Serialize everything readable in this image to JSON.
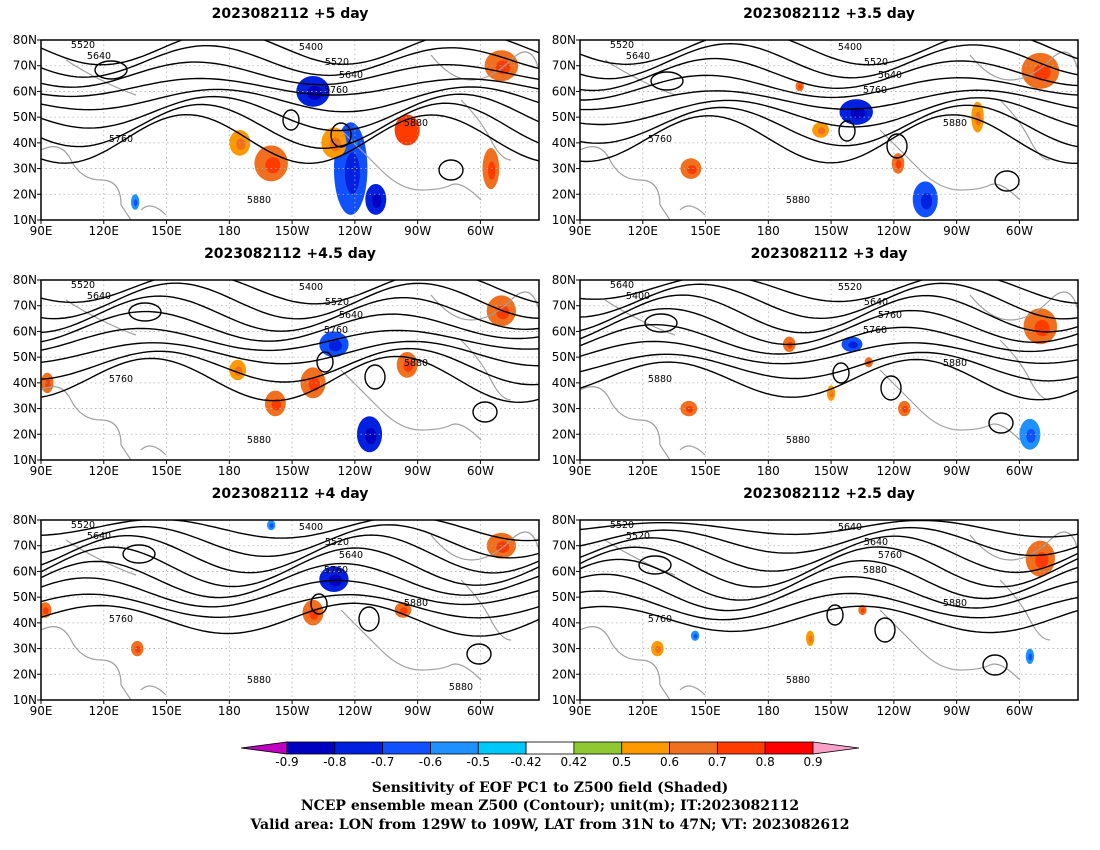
{
  "panels": [
    {
      "title": "2023082112 +5 day",
      "contour_labels": [
        "5520",
        "5640",
        "5400",
        "5520",
        "5640",
        "5760",
        "5760",
        "5880",
        "5880"
      ],
      "shading": [
        {
          "lon": -140,
          "lat": 60,
          "value": -0.8,
          "rx": 8,
          "ry": 6
        },
        {
          "lon": -122,
          "lat": 30,
          "value": -0.7,
          "rx": 8,
          "ry": 18
        },
        {
          "lon": -110,
          "lat": 18,
          "value": -0.8,
          "rx": 5,
          "ry": 6
        },
        {
          "lon": -130,
          "lat": 40,
          "value": 0.5,
          "rx": 6,
          "ry": 6
        },
        {
          "lon": -160,
          "lat": 32,
          "value": 0.6,
          "rx": 8,
          "ry": 7
        },
        {
          "lon": -175,
          "lat": 40,
          "value": 0.5,
          "rx": 5,
          "ry": 5
        },
        {
          "lon": -95,
          "lat": 45,
          "value": 0.7,
          "rx": 6,
          "ry": 6
        },
        {
          "lon": -50,
          "lat": 70,
          "value": 0.6,
          "rx": 8,
          "ry": 6
        },
        {
          "lon": -55,
          "lat": 30,
          "value": 0.6,
          "rx": 4,
          "ry": 8
        },
        {
          "lon": 135,
          "lat": 17,
          "value": -0.6,
          "rx": 2,
          "ry": 3
        }
      ]
    },
    {
      "title": "2023082112 +3.5 day",
      "contour_labels": [
        "5520",
        "5640",
        "5400",
        "5520",
        "5640",
        "5760",
        "5760",
        "5880",
        "5880"
      ],
      "shading": [
        {
          "lon": -138,
          "lat": 52,
          "value": -0.8,
          "rx": 8,
          "ry": 5
        },
        {
          "lon": -105,
          "lat": 18,
          "value": -0.7,
          "rx": 6,
          "ry": 7
        },
        {
          "lon": -155,
          "lat": 45,
          "value": 0.5,
          "rx": 4,
          "ry": 3
        },
        {
          "lon": -118,
          "lat": 32,
          "value": 0.6,
          "rx": 3,
          "ry": 4
        },
        {
          "lon": 143,
          "lat": 30,
          "value": 0.6,
          "rx": 5,
          "ry": 4
        },
        {
          "lon": -50,
          "lat": 68,
          "value": 0.6,
          "rx": 9,
          "ry": 7
        },
        {
          "lon": -80,
          "lat": 50,
          "value": 0.5,
          "rx": 3,
          "ry": 6
        },
        {
          "lon": -165,
          "lat": 62,
          "value": 0.6,
          "rx": 2,
          "ry": 2
        }
      ]
    },
    {
      "title": "2023082112 +4.5 day",
      "contour_labels": [
        "5520",
        "5640",
        "5400",
        "5520",
        "5640",
        "5760",
        "5760",
        "5880",
        "5880"
      ],
      "shading": [
        {
          "lon": -130,
          "lat": 55,
          "value": -0.7,
          "rx": 7,
          "ry": 5
        },
        {
          "lon": -113,
          "lat": 20,
          "value": -0.8,
          "rx": 6,
          "ry": 7
        },
        {
          "lon": -140,
          "lat": 40,
          "value": 0.6,
          "rx": 6,
          "ry": 6
        },
        {
          "lon": -158,
          "lat": 32,
          "value": 0.6,
          "rx": 5,
          "ry": 5
        },
        {
          "lon": -176,
          "lat": 45,
          "value": 0.5,
          "rx": 4,
          "ry": 4
        },
        {
          "lon": -95,
          "lat": 47,
          "value": 0.6,
          "rx": 5,
          "ry": 5
        },
        {
          "lon": 93,
          "lat": 40,
          "value": 0.6,
          "rx": 3,
          "ry": 4
        },
        {
          "lon": -50,
          "lat": 68,
          "value": 0.6,
          "rx": 7,
          "ry": 6
        }
      ]
    },
    {
      "title": "2023082112 +3 day",
      "contour_labels": [
        "5640",
        "5400",
        "5520",
        "5640",
        "5760",
        "5760",
        "5880",
        "5880",
        "5880"
      ],
      "shading": [
        {
          "lon": -140,
          "lat": 55,
          "value": -0.7,
          "rx": 5,
          "ry": 3
        },
        {
          "lon": -55,
          "lat": 20,
          "value": -0.6,
          "rx": 5,
          "ry": 6
        },
        {
          "lon": -170,
          "lat": 55,
          "value": 0.6,
          "rx": 3,
          "ry": 3
        },
        {
          "lon": -132,
          "lat": 48,
          "value": 0.6,
          "rx": 2,
          "ry": 2
        },
        {
          "lon": -115,
          "lat": 30,
          "value": 0.6,
          "rx": 3,
          "ry": 3
        },
        {
          "lon": 142,
          "lat": 30,
          "value": 0.6,
          "rx": 4,
          "ry": 3
        },
        {
          "lon": -50,
          "lat": 62,
          "value": 0.6,
          "rx": 8,
          "ry": 7
        },
        {
          "lon": -150,
          "lat": 36,
          "value": 0.5,
          "rx": 2,
          "ry": 3
        }
      ]
    },
    {
      "title": "2023082112 +4 day",
      "contour_labels": [
        "5520",
        "5640",
        "5400",
        "5520",
        "5640",
        "5760",
        "5760",
        "5880",
        "5880",
        "5880"
      ],
      "shading": [
        {
          "lon": -130,
          "lat": 57,
          "value": -0.8,
          "rx": 7,
          "ry": 5
        },
        {
          "lon": -140,
          "lat": 44,
          "value": 0.6,
          "rx": 5,
          "ry": 5
        },
        {
          "lon": -97,
          "lat": 45,
          "value": 0.6,
          "rx": 4,
          "ry": 3
        },
        {
          "lon": 92,
          "lat": 45,
          "value": 0.6,
          "rx": 3,
          "ry": 3
        },
        {
          "lon": 136,
          "lat": 30,
          "value": 0.6,
          "rx": 3,
          "ry": 3
        },
        {
          "lon": -50,
          "lat": 70,
          "value": 0.6,
          "rx": 7,
          "ry": 5
        },
        {
          "lon": -160,
          "lat": 78,
          "value": -0.6,
          "rx": 2,
          "ry": 2
        }
      ]
    },
    {
      "title": "2023082112 +2.5 day",
      "contour_labels": [
        "5520",
        "5520",
        "5640",
        "5640",
        "5760",
        "5880",
        "5760",
        "5880",
        "5880"
      ],
      "shading": [
        {
          "lon": -135,
          "lat": 45,
          "value": 0.6,
          "rx": 2,
          "ry": 2
        },
        {
          "lon": -160,
          "lat": 34,
          "value": 0.5,
          "rx": 2,
          "ry": 3
        },
        {
          "lon": -55,
          "lat": 27,
          "value": -0.6,
          "rx": 2,
          "ry": 3
        },
        {
          "lon": -50,
          "lat": 65,
          "value": 0.6,
          "rx": 7,
          "ry": 7
        },
        {
          "lon": 127,
          "lat": 30,
          "value": 0.5,
          "rx": 3,
          "ry": 3
        },
        {
          "lon": 145,
          "lat": 35,
          "value": -0.6,
          "rx": 2,
          "ry": 2
        }
      ]
    }
  ],
  "axes": {
    "lat_ticks": [
      "10N",
      "20N",
      "30N",
      "40N",
      "50N",
      "60N",
      "70N",
      "80N"
    ],
    "lon_ticks": [
      "90E",
      "120E",
      "150E",
      "180",
      "150W",
      "120W",
      "90W",
      "60W"
    ],
    "lon_range": [
      90,
      328
    ],
    "lat_range": [
      10,
      80
    ]
  },
  "colorbar": {
    "labels": [
      "-0.9",
      "-0.8",
      "-0.7",
      "-0.6",
      "-0.5",
      "-0.42",
      "0.42",
      "0.5",
      "0.6",
      "0.7",
      "0.8",
      "0.9"
    ],
    "colors": [
      "#c000c0",
      "#0000c0",
      "#0020e0",
      "#1050ff",
      "#1e90ff",
      "#00c8f8",
      "#ffffff",
      "#90c832",
      "#ff9900",
      "#f07020",
      "#ff3c00",
      "#ff0000",
      "#f8a0c8"
    ],
    "neutral_color": "#ffffff"
  },
  "caption": {
    "line1": "Sensitivity of EOF PC1 to Z500 field (Shaded)",
    "line2": "NCEP ensemble mean Z500 (Contour); unit(m); IT:2023082112",
    "line3": "Valid area: LON from 129W to 109W, LAT from 31N to 47N; VT: 2023082612"
  }
}
